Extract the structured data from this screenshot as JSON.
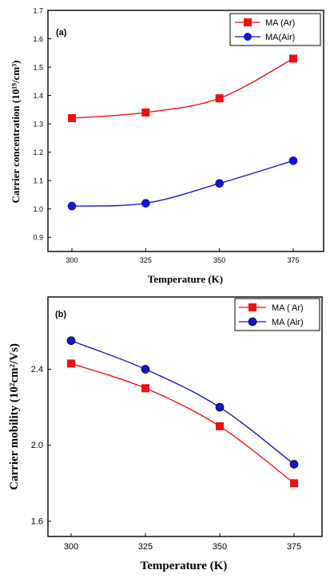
{
  "chart_data": [
    {
      "type": "line",
      "panel_label": "(a)",
      "xlabel": "Temperature (K)",
      "ylabel": "Carrier concentration (10¹⁹/cm³)",
      "x": [
        300,
        325,
        350,
        375
      ],
      "xticks": [
        "300",
        "325",
        "350",
        "375"
      ],
      "yticks": [
        "0.9",
        "1.0",
        "1.1",
        "1.2",
        "1.3",
        "1.4",
        "1.5",
        "1.6",
        "1.7"
      ],
      "ylim": [
        0.85,
        1.7
      ],
      "legend_position": "top-right",
      "series": [
        {
          "name": "MA (Ar)",
          "color": "#ee1111",
          "marker": "square",
          "values": [
            1.32,
            1.34,
            1.39,
            1.53
          ]
        },
        {
          "name": "MA(Air)",
          "color": "#1515cc",
          "marker": "circle",
          "values": [
            1.01,
            1.02,
            1.09,
            1.17
          ]
        }
      ]
    },
    {
      "type": "line",
      "panel_label": "(b)",
      "xlabel": "Temperature (K)",
      "ylabel": "Carrier mobility (10²cm²/Vs)",
      "x": [
        300,
        325,
        350,
        375
      ],
      "xticks": [
        "300",
        "325",
        "350",
        "375"
      ],
      "yticks": [
        "1.6",
        "2.0",
        "2.4"
      ],
      "ylim": [
        1.52,
        2.78
      ],
      "legend_position": "top-right",
      "series": [
        {
          "name": "MA ( Ar)",
          "color": "#ee1111",
          "marker": "square",
          "values": [
            2.43,
            2.3,
            2.1,
            1.8
          ]
        },
        {
          "name": "MA (Air)",
          "color": "#1515cc",
          "marker": "circle",
          "values": [
            2.55,
            2.4,
            2.2,
            1.9
          ]
        }
      ]
    }
  ]
}
